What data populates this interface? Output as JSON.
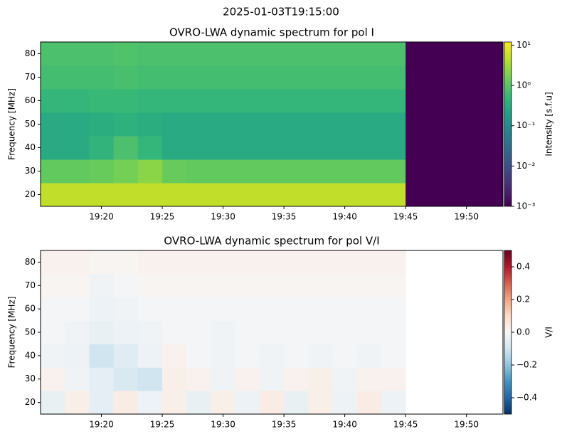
{
  "title": "2025-01-03T19:15:00",
  "chart_data": [
    {
      "type": "heatmap",
      "title": "OVRO-LWA dynamic spectrum for pol I",
      "ylabel": "Frequency [MHz]",
      "colorbar_label": "Intensity [s.f.u]",
      "cmap": "viridis",
      "cscale": "log",
      "clim": [
        0.001,
        12
      ],
      "cticks": [
        {
          "value": 0.001,
          "label": "10⁻³"
        },
        {
          "value": 0.01,
          "label": "10⁻²"
        },
        {
          "value": 0.1,
          "label": "10⁻¹"
        },
        {
          "value": 1,
          "label": "10⁰"
        },
        {
          "value": 10,
          "label": "10¹"
        }
      ],
      "x": [
        "19:15",
        "19:17",
        "19:19",
        "19:21",
        "19:23",
        "19:25",
        "19:27",
        "19:29",
        "19:31",
        "19:33",
        "19:35",
        "19:37",
        "19:39",
        "19:41",
        "19:43",
        "19:45",
        "19:47",
        "19:49",
        "19:51",
        "19:53"
      ],
      "y": [
        15,
        25,
        35,
        45,
        55,
        65,
        75,
        85
      ],
      "z": [
        [
          5,
          5,
          5,
          5,
          5,
          5,
          5,
          5,
          5,
          5,
          5,
          5,
          5,
          5,
          5,
          0.001,
          0.001,
          0.001,
          0.001
        ],
        [
          1.2,
          1.2,
          1.3,
          1.6,
          2.2,
          1.3,
          1.2,
          1.2,
          1.2,
          1.2,
          1.2,
          1.2,
          1.2,
          1.2,
          1.2,
          0.001,
          0.001,
          0.001,
          0.001
        ],
        [
          0.3,
          0.3,
          0.45,
          0.8,
          0.5,
          0.3,
          0.3,
          0.3,
          0.3,
          0.3,
          0.3,
          0.3,
          0.3,
          0.3,
          0.3,
          0.001,
          0.001,
          0.001,
          0.001
        ],
        [
          0.3,
          0.3,
          0.35,
          0.4,
          0.35,
          0.3,
          0.3,
          0.3,
          0.3,
          0.3,
          0.3,
          0.3,
          0.3,
          0.3,
          0.3,
          0.001,
          0.001,
          0.001,
          0.001
        ],
        [
          0.5,
          0.5,
          0.55,
          0.55,
          0.5,
          0.5,
          0.5,
          0.5,
          0.5,
          0.5,
          0.5,
          0.5,
          0.5,
          0.5,
          0.5,
          0.001,
          0.001,
          0.001,
          0.001
        ],
        [
          0.7,
          0.7,
          0.7,
          0.75,
          0.7,
          0.7,
          0.7,
          0.7,
          0.7,
          0.7,
          0.7,
          0.7,
          0.7,
          0.7,
          0.7,
          0.001,
          0.001,
          0.001,
          0.001
        ],
        [
          0.8,
          0.8,
          0.8,
          0.85,
          0.8,
          0.8,
          0.8,
          0.8,
          0.8,
          0.8,
          0.8,
          0.8,
          0.8,
          0.8,
          0.8,
          0.001,
          0.001,
          0.001,
          0.001
        ]
      ],
      "xlim": [
        "19:15",
        "19:53"
      ],
      "xticks": [
        "19:20",
        "19:25",
        "19:30",
        "19:35",
        "19:40",
        "19:45",
        "19:50"
      ],
      "ylim": [
        15,
        85
      ],
      "yticks": [
        20,
        30,
        40,
        50,
        60,
        70,
        80
      ]
    },
    {
      "type": "heatmap",
      "title": "OVRO-LWA dynamic spectrum for pol V/I",
      "ylabel": "Frequency [MHz]",
      "colorbar_label": "V/I",
      "cmap": "RdBu_r",
      "cscale": "linear",
      "clim": [
        -0.5,
        0.5
      ],
      "cticks": [
        {
          "value": -0.4,
          "label": "−0.4"
        },
        {
          "value": -0.2,
          "label": "−0.2"
        },
        {
          "value": 0,
          "label": "0.0"
        },
        0.2,
        0.4
      ],
      "x": [
        "19:15",
        "19:17",
        "19:19",
        "19:21",
        "19:23",
        "19:25",
        "19:27",
        "19:29",
        "19:31",
        "19:33",
        "19:35",
        "19:37",
        "19:39",
        "19:41",
        "19:43",
        "19:45",
        "19:47",
        "19:49",
        "19:51",
        "19:53"
      ],
      "y": [
        15,
        25,
        35,
        45,
        55,
        65,
        75,
        85
      ],
      "z": [
        [
          -0.04,
          0.03,
          -0.05,
          0.04,
          -0.03,
          0.03,
          -0.04,
          0.03,
          -0.03,
          0.04,
          -0.04,
          0.03,
          -0.03,
          0.04,
          -0.03,
          null,
          null,
          null,
          null
        ],
        [
          0.02,
          -0.02,
          -0.05,
          -0.08,
          -0.1,
          0.03,
          0.02,
          -0.02,
          0.02,
          -0.02,
          0.02,
          0.03,
          -0.02,
          0.02,
          0.02,
          null,
          null,
          null,
          null
        ],
        [
          -0.02,
          -0.03,
          -0.1,
          -0.06,
          -0.03,
          0.02,
          -0.01,
          -0.02,
          -0.01,
          -0.02,
          -0.01,
          -0.02,
          -0.01,
          -0.02,
          -0.01,
          null,
          null,
          null,
          null
        ],
        [
          -0.01,
          -0.02,
          -0.04,
          -0.03,
          -0.02,
          -0.01,
          -0.01,
          -0.02,
          -0.01,
          -0.01,
          -0.01,
          -0.01,
          -0.01,
          -0.01,
          -0.01,
          null,
          null,
          null,
          null
        ],
        [
          -0.01,
          -0.01,
          -0.03,
          -0.02,
          -0.01,
          -0.01,
          -0.01,
          -0.01,
          -0.01,
          -0.01,
          -0.01,
          -0.01,
          -0.01,
          -0.01,
          -0.01,
          null,
          null,
          null,
          null
        ],
        [
          0.01,
          0.01,
          -0.02,
          -0.01,
          0.01,
          0.01,
          0.01,
          0.01,
          0.01,
          0.01,
          0.01,
          0.01,
          0.01,
          0.01,
          0.01,
          null,
          null,
          null,
          null
        ],
        [
          0.02,
          0.02,
          0.01,
          0.01,
          0.02,
          0.02,
          0.02,
          0.02,
          0.02,
          0.02,
          0.02,
          0.02,
          0.02,
          0.02,
          0.02,
          null,
          null,
          null,
          null
        ]
      ],
      "xlim": [
        "19:15",
        "19:53"
      ],
      "xticks": [
        "19:20",
        "19:25",
        "19:30",
        "19:35",
        "19:40",
        "19:45",
        "19:50"
      ],
      "ylim": [
        15,
        85
      ],
      "yticks": [
        20,
        30,
        40,
        50,
        60,
        70,
        80
      ]
    }
  ]
}
